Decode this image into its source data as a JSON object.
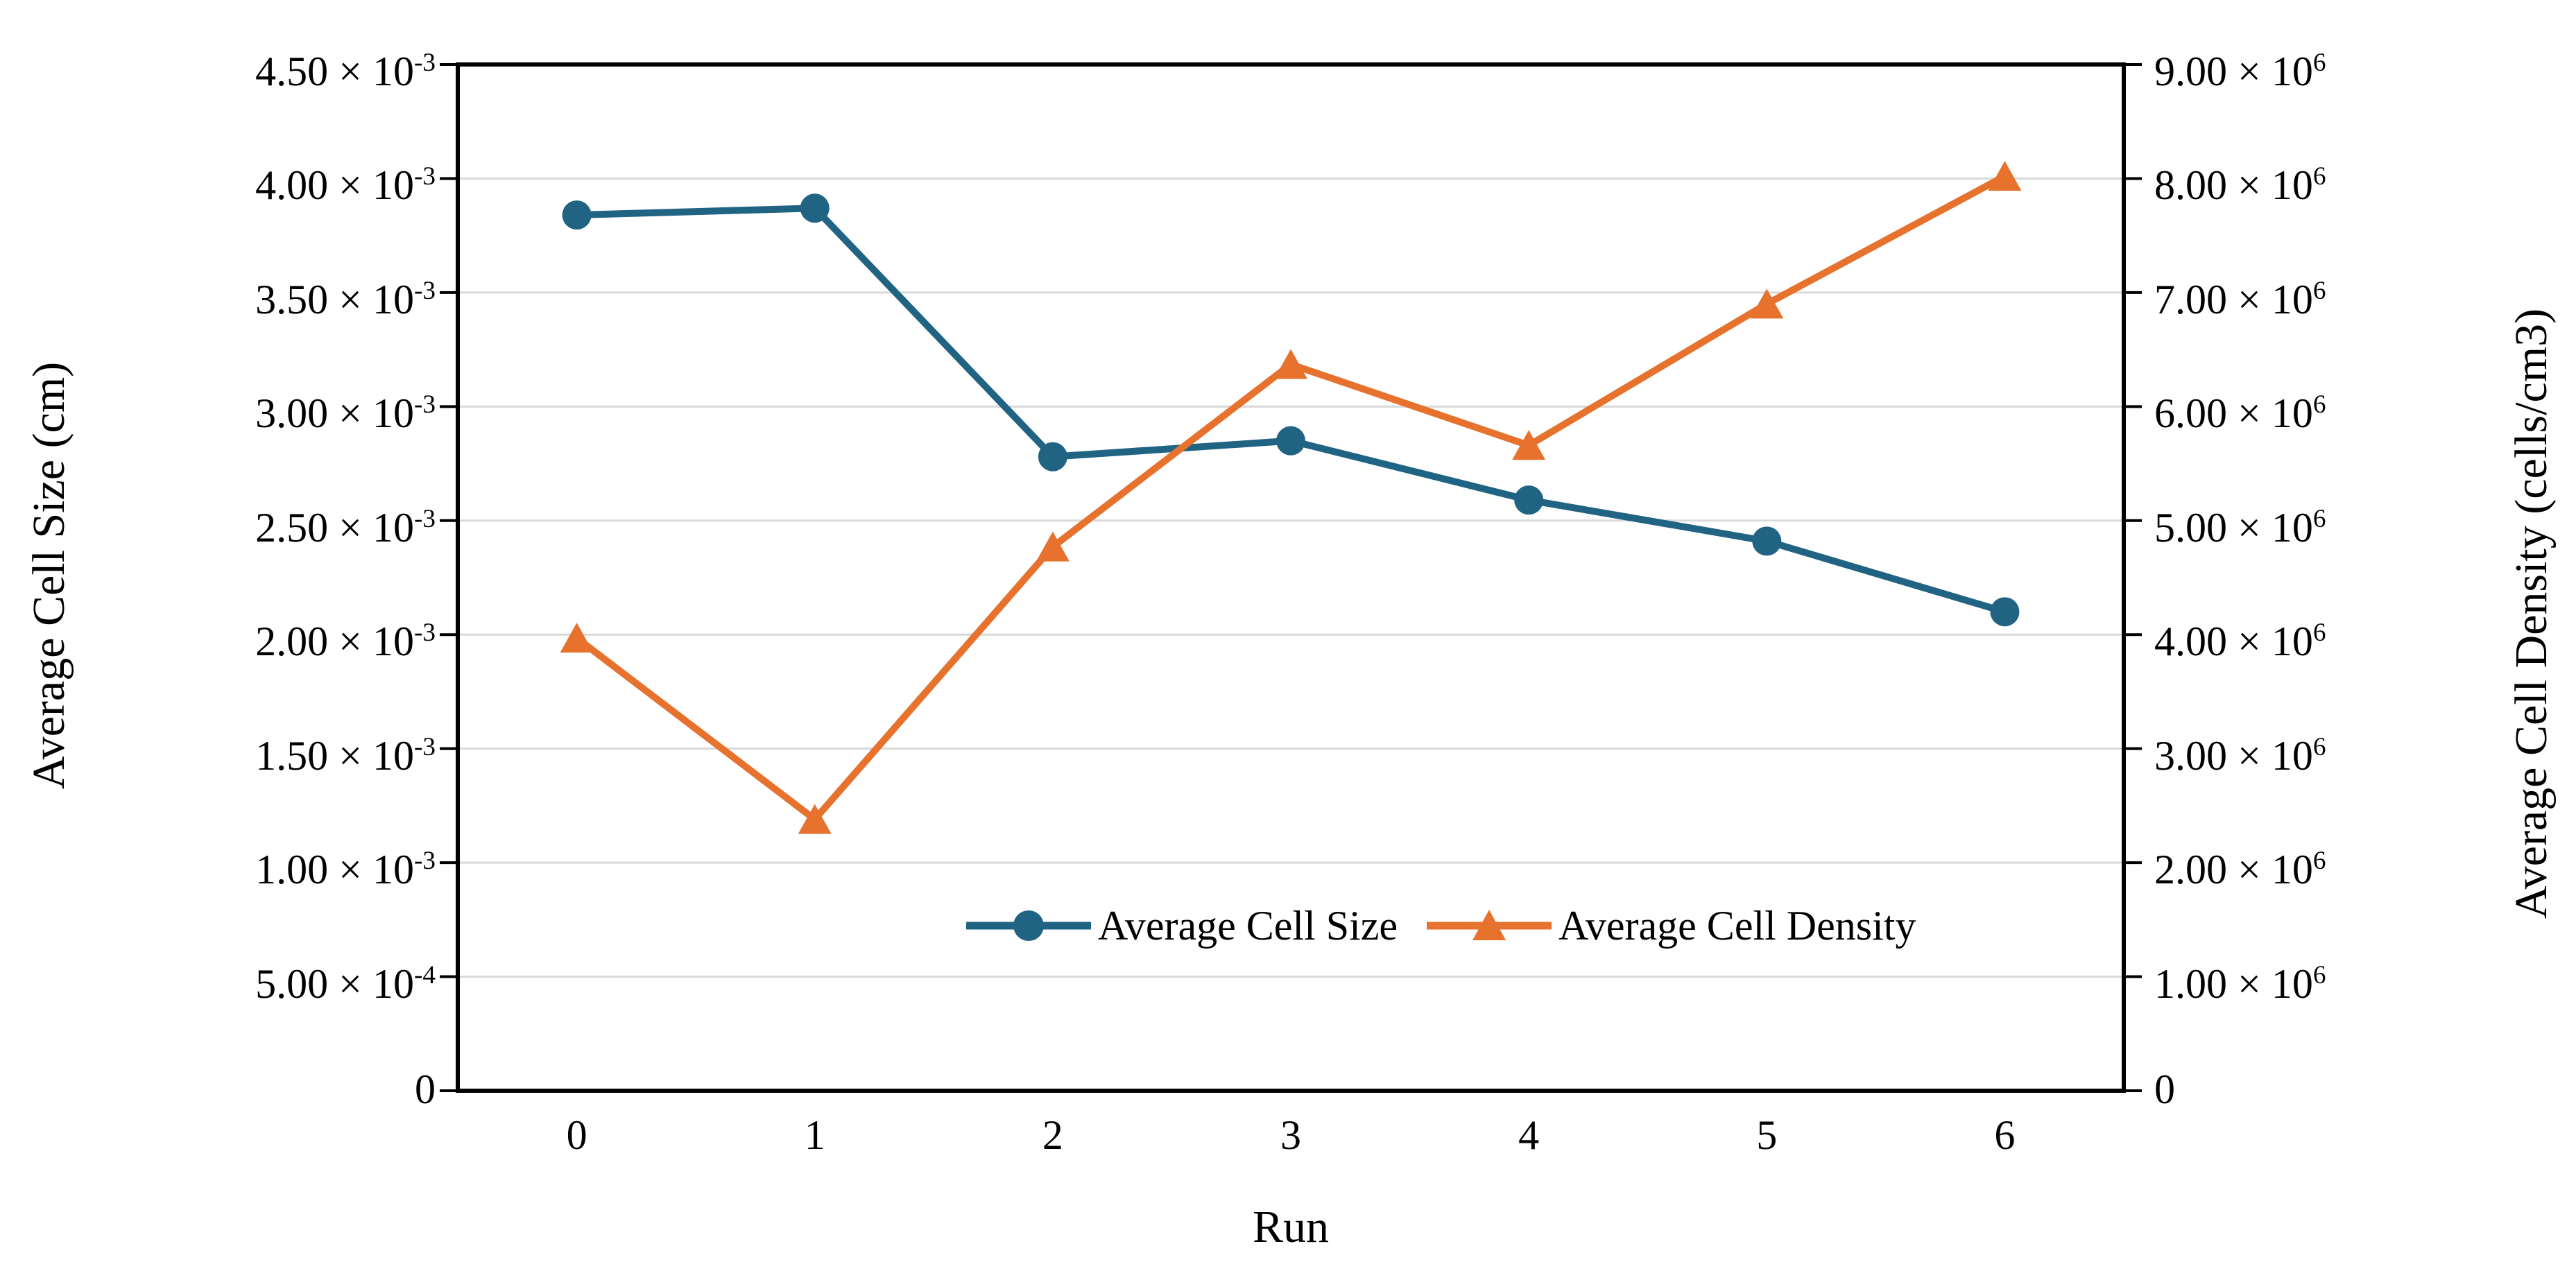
{
  "chart_data": {
    "type": "line",
    "x": [
      0,
      1,
      2,
      3,
      4,
      5,
      6
    ],
    "x_ticks": [
      "0",
      "1",
      "2",
      "3",
      "4",
      "5",
      "6"
    ],
    "xlabel": "Run",
    "series": [
      {
        "name": "Average Cell Size",
        "axis": "left",
        "marker": "circle",
        "color": "#206382",
        "values": [
          0.00384,
          0.00387,
          0.00278,
          0.00285,
          0.00259,
          0.00241,
          0.0021
        ]
      },
      {
        "name": "Average Cell Density",
        "axis": "right",
        "marker": "triangle",
        "color": "#E6722D",
        "values": [
          3970000,
          2380000,
          4770000,
          6370000,
          5660000,
          6900000,
          8020000
        ]
      }
    ],
    "left_axis": {
      "title": "Average Cell Size (cm)",
      "min": 0,
      "max": 0.0045,
      "ticks": [
        "4.50 × 10^-3",
        "4.00 × 10^-3",
        "3.50 × 10^-3",
        "3.00 × 10^-3",
        "2.50 × 10^-3",
        "2.00 × 10^-3",
        "1.50 × 10^-3",
        "1.00 × 10^-3",
        "5.00 × 10^-4",
        "0"
      ]
    },
    "right_axis": {
      "title": "Average Cell Density (cells/cm3)",
      "min": 0,
      "max": 9000000,
      "ticks": [
        "9.00 × 10^6",
        "8.00 × 10^6",
        "7.00 × 10^6",
        "6.00 × 10^6",
        "5.00 × 10^6",
        "4.00 × 10^6",
        "3.00 × 10^6",
        "2.00 × 10^6",
        "1.00 × 10^6",
        "0"
      ]
    },
    "grid": true,
    "legend_position": "inside-bottom",
    "colors": {
      "grid": "#D9D9D9",
      "axis": "#000000",
      "background": "#FFFFFF"
    }
  }
}
